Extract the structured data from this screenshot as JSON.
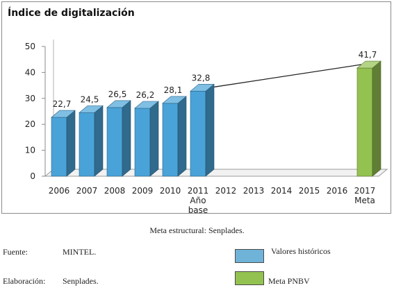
{
  "chart_data": {
    "type": "bar",
    "title": "Índice de digitalización",
    "categories": [
      "2006",
      "2007",
      "2008",
      "2009",
      "2010",
      "2011",
      "2012",
      "2013",
      "2014",
      "2015",
      "2016",
      "2017"
    ],
    "category_sublabels": {
      "2011": [
        "Año",
        "base"
      ],
      "2017": [
        "Meta"
      ]
    },
    "series": [
      {
        "name": "Valores históricos",
        "color": "#4aa3d8",
        "values": [
          22.7,
          24.5,
          26.5,
          26.2,
          28.1,
          32.8,
          null,
          null,
          null,
          null,
          null,
          null
        ]
      },
      {
        "name": "Meta PNBV",
        "color": "#93c250",
        "values": [
          null,
          null,
          null,
          null,
          null,
          null,
          null,
          null,
          null,
          null,
          null,
          41.7
        ]
      }
    ],
    "data_labels": [
      "22,7",
      "24,5",
      "26,5",
      "26,2",
      "28,1",
      "32,8",
      "",
      "",
      "",
      "",
      "",
      "41,7"
    ],
    "trend_line": {
      "from": "2011",
      "to": "2017"
    },
    "ylim": [
      0,
      50
    ],
    "yticks": [
      "0",
      "10",
      "20",
      "30",
      "40",
      "50"
    ],
    "xlabel": "",
    "ylabel": "",
    "grid": false
  },
  "caption": "Meta estructural: Senplades.",
  "footer": {
    "source_label": "Fuente:",
    "source_value": "MINTEL.",
    "elaboration_label": "Elaboración:",
    "elaboration_value": "Senplades."
  },
  "legend": [
    {
      "label": "Valores históricos",
      "color": "#6fb3d9"
    },
    {
      "label": "Meta PNBV",
      "color": "#93c250"
    }
  ]
}
